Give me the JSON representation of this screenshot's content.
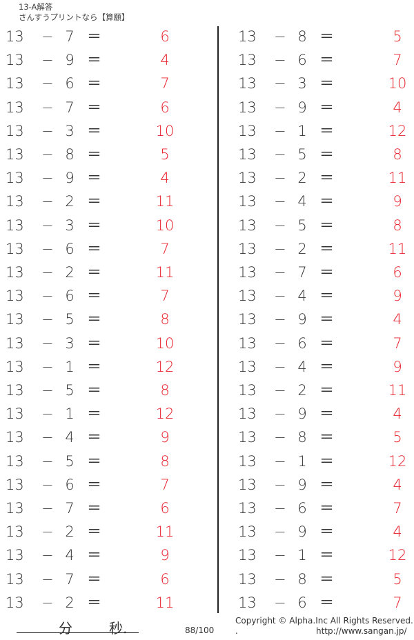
{
  "header": {
    "title": "13-A解答",
    "subtitle": "さんすうプリントなら【算願】"
  },
  "colors": {
    "answer": "#e8202a",
    "text": "#333333"
  },
  "operator": "−",
  "equals": "＝",
  "left_column": [
    {
      "a": "13",
      "b": "7",
      "ans": "6"
    },
    {
      "a": "13",
      "b": "9",
      "ans": "4"
    },
    {
      "a": "13",
      "b": "6",
      "ans": "7"
    },
    {
      "a": "13",
      "b": "7",
      "ans": "6"
    },
    {
      "a": "13",
      "b": "3",
      "ans": "10"
    },
    {
      "a": "13",
      "b": "8",
      "ans": "5"
    },
    {
      "a": "13",
      "b": "9",
      "ans": "4"
    },
    {
      "a": "13",
      "b": "2",
      "ans": "11"
    },
    {
      "a": "13",
      "b": "3",
      "ans": "10"
    },
    {
      "a": "13",
      "b": "6",
      "ans": "7"
    },
    {
      "a": "13",
      "b": "2",
      "ans": "11"
    },
    {
      "a": "13",
      "b": "6",
      "ans": "7"
    },
    {
      "a": "13",
      "b": "5",
      "ans": "8"
    },
    {
      "a": "13",
      "b": "3",
      "ans": "10"
    },
    {
      "a": "13",
      "b": "1",
      "ans": "12"
    },
    {
      "a": "13",
      "b": "5",
      "ans": "8"
    },
    {
      "a": "13",
      "b": "1",
      "ans": "12"
    },
    {
      "a": "13",
      "b": "4",
      "ans": "9"
    },
    {
      "a": "13",
      "b": "5",
      "ans": "8"
    },
    {
      "a": "13",
      "b": "6",
      "ans": "7"
    },
    {
      "a": "13",
      "b": "7",
      "ans": "6"
    },
    {
      "a": "13",
      "b": "2",
      "ans": "11"
    },
    {
      "a": "13",
      "b": "4",
      "ans": "9"
    },
    {
      "a": "13",
      "b": "7",
      "ans": "6"
    },
    {
      "a": "13",
      "b": "2",
      "ans": "11"
    }
  ],
  "right_column": [
    {
      "a": "13",
      "b": "8",
      "ans": "5"
    },
    {
      "a": "13",
      "b": "6",
      "ans": "7"
    },
    {
      "a": "13",
      "b": "3",
      "ans": "10"
    },
    {
      "a": "13",
      "b": "9",
      "ans": "4"
    },
    {
      "a": "13",
      "b": "1",
      "ans": "12"
    },
    {
      "a": "13",
      "b": "5",
      "ans": "8"
    },
    {
      "a": "13",
      "b": "2",
      "ans": "11"
    },
    {
      "a": "13",
      "b": "4",
      "ans": "9"
    },
    {
      "a": "13",
      "b": "5",
      "ans": "8"
    },
    {
      "a": "13",
      "b": "2",
      "ans": "11"
    },
    {
      "a": "13",
      "b": "7",
      "ans": "6"
    },
    {
      "a": "13",
      "b": "4",
      "ans": "9"
    },
    {
      "a": "13",
      "b": "9",
      "ans": "4"
    },
    {
      "a": "13",
      "b": "6",
      "ans": "7"
    },
    {
      "a": "13",
      "b": "4",
      "ans": "9"
    },
    {
      "a": "13",
      "b": "2",
      "ans": "11"
    },
    {
      "a": "13",
      "b": "9",
      "ans": "4"
    },
    {
      "a": "13",
      "b": "8",
      "ans": "5"
    },
    {
      "a": "13",
      "b": "1",
      "ans": "12"
    },
    {
      "a": "13",
      "b": "9",
      "ans": "4"
    },
    {
      "a": "13",
      "b": "6",
      "ans": "7"
    },
    {
      "a": "13",
      "b": "9",
      "ans": "4"
    },
    {
      "a": "13",
      "b": "1",
      "ans": "12"
    },
    {
      "a": "13",
      "b": "8",
      "ans": "5"
    },
    {
      "a": "13",
      "b": "6",
      "ans": "7"
    }
  ],
  "footer": {
    "minutes_label": "分",
    "seconds_label": "秒.",
    "score": "88/100",
    "copyright": "Copyright ©  Alpha.Inc All Rights Reserved.",
    "dot": ".",
    "url": "http://www.sangan.jp/"
  }
}
